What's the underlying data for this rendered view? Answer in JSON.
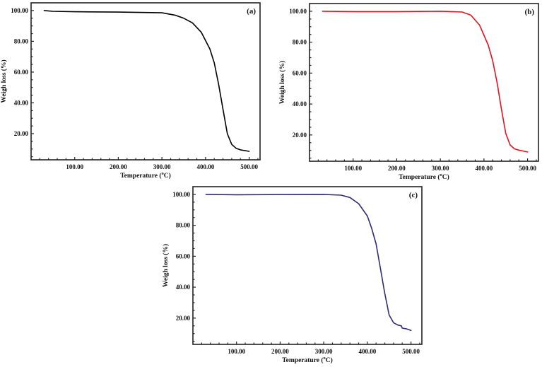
{
  "figure": {
    "panels": [
      {
        "id": "a",
        "tag": "(a)",
        "color": "#000000"
      },
      {
        "id": "b",
        "tag": "(b)",
        "color": "#e8101e"
      },
      {
        "id": "c",
        "tag": "(c)",
        "color": "#2e2b7a"
      }
    ]
  },
  "chart_data": [
    {
      "type": "line",
      "panel_label": "(a)",
      "title": "",
      "xlabel": "Temperature (°C)",
      "ylabel": "Weigh loss (%)",
      "xlim": [
        0,
        525
      ],
      "ylim": [
        3,
        105
      ],
      "xticks": [
        "100.00",
        "200.00",
        "300.00",
        "400.00",
        "500.00"
      ],
      "yticks": [
        "20.00",
        "40.00",
        "60.00",
        "80.00",
        "100.00"
      ],
      "grid": false,
      "series": [
        {
          "name": "(a)",
          "color": "#000000",
          "x": [
            30,
            50,
            100,
            200,
            300,
            330,
            350,
            370,
            390,
            410,
            420,
            430,
            440,
            450,
            460,
            470,
            480,
            500
          ],
          "y": [
            100,
            99.5,
            99.2,
            99.0,
            98.5,
            97,
            95,
            92,
            86,
            75,
            66,
            52,
            36,
            20,
            13,
            10.5,
            9.5,
            8.5
          ]
        }
      ]
    },
    {
      "type": "line",
      "panel_label": "(b)",
      "title": "",
      "xlabel": "Temperature (°C)",
      "ylabel": "Weigh loss (%)",
      "xlim": [
        0,
        525
      ],
      "ylim": [
        3,
        105
      ],
      "xticks": [
        "100.00",
        "200.00",
        "300.00",
        "400.00",
        "500.00"
      ],
      "yticks": [
        "20.00",
        "40.00",
        "60.00",
        "80.00",
        "100.00"
      ],
      "grid": false,
      "series": [
        {
          "name": "(b)",
          "color": "#e8101e",
          "x": [
            30,
            100,
            200,
            300,
            350,
            370,
            390,
            410,
            420,
            430,
            440,
            450,
            460,
            470,
            480,
            500
          ],
          "y": [
            100,
            99.8,
            99.8,
            100,
            99.5,
            97.5,
            91,
            78,
            68,
            54,
            37,
            21,
            13.5,
            11,
            10.2,
            9
          ]
        }
      ]
    },
    {
      "type": "line",
      "panel_label": "(c)",
      "title": "",
      "xlabel": "Temperature (°C)",
      "ylabel": "Weigh loss (%)",
      "xlim": [
        0,
        525
      ],
      "ylim": [
        3,
        105
      ],
      "xticks": [
        "100.00",
        "200.00",
        "300.00",
        "400.00",
        "500.00"
      ],
      "yticks": [
        "20.00",
        "40.00",
        "60.00",
        "80.00",
        "100.00"
      ],
      "grid": false,
      "series": [
        {
          "name": "(c)",
          "color": "#2e2b7a",
          "x": [
            30,
            100,
            200,
            300,
            340,
            360,
            380,
            400,
            410,
            420,
            430,
            440,
            450,
            460,
            470,
            478,
            480,
            490,
            500
          ],
          "y": [
            100,
            99.8,
            99.9,
            100,
            99.5,
            98,
            94,
            86,
            78,
            68,
            52,
            36,
            22,
            17,
            15.5,
            15,
            13.5,
            13,
            12
          ]
        }
      ]
    }
  ]
}
